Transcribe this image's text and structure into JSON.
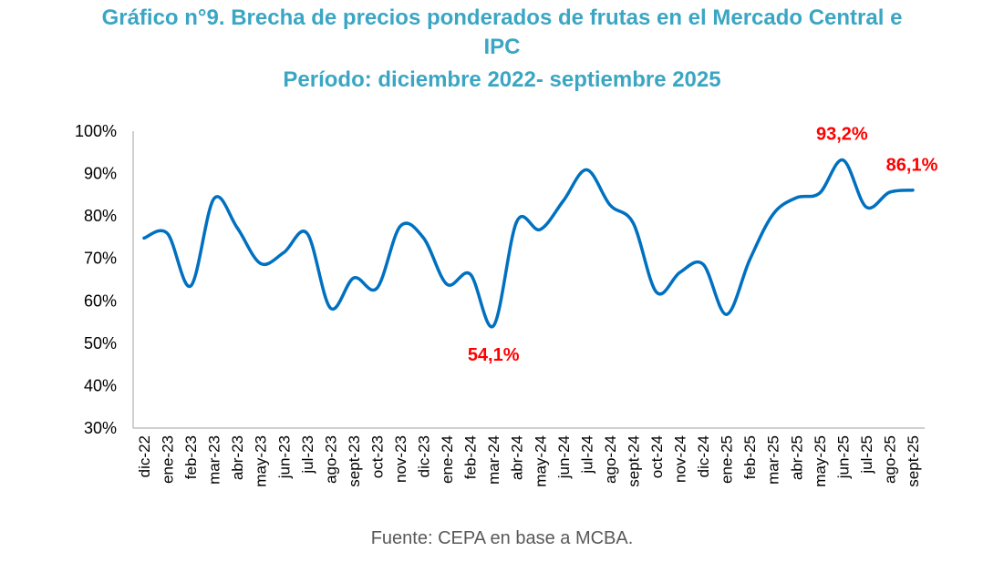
{
  "title_line1": "Gráfico n°9. Brecha de precios ponderados de frutas en el Mercado Central e",
  "title_line2": "IPC",
  "title_line3": "Período: diciembre 2022- septiembre 2025",
  "source": "Fuente: CEPA en base a MCBA.",
  "colors": {
    "title": "#3aa6c4",
    "line": "#0070c0",
    "annotation": "#ff0000",
    "axis": "#bfbfbf"
  },
  "chart_data": {
    "type": "line",
    "title": "Gráfico n°9. Brecha de precios ponderados de frutas en el Mercado Central e IPC — Período: diciembre 2022- septiembre 2025",
    "xlabel": "",
    "ylabel": "",
    "ylim": [
      30,
      100
    ],
    "yticks": [
      30,
      40,
      50,
      60,
      70,
      80,
      90,
      100
    ],
    "ytick_labels": [
      "30%",
      "40%",
      "50%",
      "60%",
      "70%",
      "80%",
      "90%",
      "100%"
    ],
    "grid": false,
    "legend": "none",
    "categories": [
      "dic-22",
      "ene-23",
      "feb-23",
      "mar-23",
      "abr-23",
      "may-23",
      "jun-23",
      "jul-23",
      "ago-23",
      "sept-23",
      "oct-23",
      "nov-23",
      "dic-23",
      "ene-24",
      "feb-24",
      "mar-24",
      "abr-24",
      "may-24",
      "jun-24",
      "jul-24",
      "ago-24",
      "sept-24",
      "oct-24",
      "nov-24",
      "dic-24",
      "ene-25",
      "feb-25",
      "mar-25",
      "abr-25",
      "may-25",
      "jun-25",
      "jul-25",
      "ago-25",
      "sept-25"
    ],
    "series": [
      {
        "name": "Brecha de precios ponderados de frutas",
        "values": [
          74.8,
          75.9,
          63.5,
          84.1,
          77.2,
          68.8,
          71.4,
          75.9,
          58.3,
          65.4,
          63.0,
          77.6,
          74.8,
          63.9,
          66.3,
          54.1,
          78.7,
          76.8,
          83.6,
          90.9,
          82.6,
          78.3,
          62.0,
          66.7,
          68.6,
          56.8,
          69.7,
          80.4,
          84.3,
          85.4,
          93.2,
          82.1,
          85.6,
          86.1
        ]
      }
    ],
    "annotations": [
      {
        "category": "mar-24",
        "value": 54.1,
        "label": "54,1%",
        "position": "below"
      },
      {
        "category": "jun-25",
        "value": 93.2,
        "label": "93,2%",
        "position": "above"
      },
      {
        "category": "sept-25",
        "value": 86.1,
        "label": "86,1%",
        "position": "above"
      }
    ]
  }
}
